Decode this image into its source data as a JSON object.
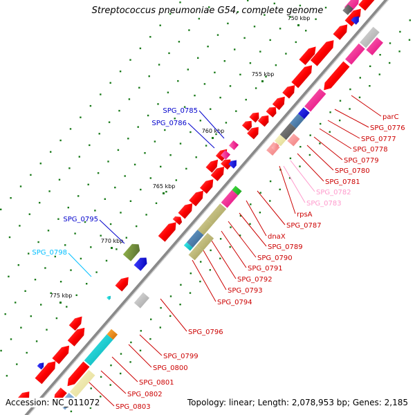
{
  "title": "Streptococcus pneumoniae G54, complete genome",
  "footer": {
    "accession": "Accession: NC_011072",
    "summary": "Topology: linear; Length: 2,078,953 bp; Genes: 2,185"
  },
  "ticks": [
    "750 kbp",
    "755 kbp",
    "760 kbp",
    "765 kbp",
    "770 kbp",
    "775 kbp"
  ],
  "genes": {
    "parC": "parC",
    "SPG_0776": "SPG_0776",
    "SPG_0777": "SPG_0777",
    "SPG_0778": "SPG_0778",
    "SPG_0779": "SPG_0779",
    "SPG_0780": "SPG_0780",
    "SPG_0781": "SPG_0781",
    "SPG_0782": "SPG_0782",
    "SPG_0783": "SPG_0783",
    "rpsA": "rpsA",
    "SPG_0787": "SPG_0787",
    "dnaX": "dnaX",
    "SPG_0789": "SPG_0789",
    "SPG_0790": "SPG_0790",
    "SPG_0791": "SPG_0791",
    "SPG_0792": "SPG_0792",
    "SPG_0793": "SPG_0793",
    "SPG_0794": "SPG_0794",
    "SPG_0796": "SPG_0796",
    "SPG_0799": "SPG_0799",
    "SPG_0800": "SPG_0800",
    "SPG_0801": "SPG_0801",
    "SPG_0802": "SPG_0802",
    "SPG_0803": "SPG_0803",
    "SPG_0785": "SPG_0785",
    "SPG_0786": "SPG_0786",
    "SPG_0795": "SPG_0795",
    "SPG_0798": "SPG_0798"
  },
  "colors": {
    "cds": "#ff0000",
    "pink": "#ff1493",
    "blue": "#0000ff",
    "steelblue": "#4682b4",
    "gray": "#696969",
    "lightgray": "#c0c0c0",
    "khaki": "#bdb76b",
    "palekhaki": "#eee8aa",
    "cyan": "#00ced1",
    "olive": "#6b8e23",
    "green": "#228b22",
    "lightpink": "#ff9999",
    "orange": "#ff8c00",
    "label_red": "#cc0000",
    "label_blue": "#0000cc",
    "label_cyan": "#00bfff",
    "label_pink": "#ff99cc"
  }
}
